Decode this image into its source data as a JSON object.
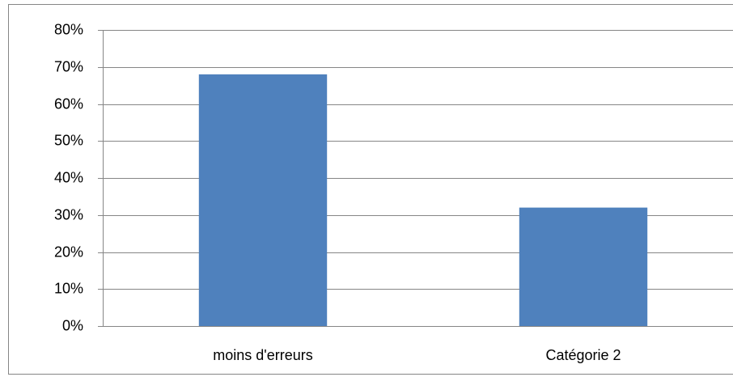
{
  "chart_data": {
    "type": "bar",
    "categories": [
      "moins d'erreurs",
      "Catégorie 2"
    ],
    "values": [
      68,
      32
    ],
    "color": "#4f81bd",
    "ylim": [
      0,
      80
    ],
    "yticks": [
      {
        "value": 0,
        "label": "0%"
      },
      {
        "value": 10,
        "label": "10%"
      },
      {
        "value": 20,
        "label": "20%"
      },
      {
        "value": 30,
        "label": "30%"
      },
      {
        "value": 40,
        "label": "40%"
      },
      {
        "value": 50,
        "label": "50%"
      },
      {
        "value": 60,
        "label": "60%"
      },
      {
        "value": 70,
        "label": "70%"
      },
      {
        "value": 80,
        "label": "80%"
      }
    ],
    "grid": true
  }
}
